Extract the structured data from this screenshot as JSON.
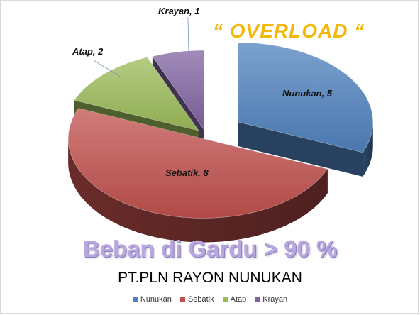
{
  "chart_data": {
    "type": "pie",
    "title": "“ OVERLOAD “",
    "subtitle": "Beban di Gardu > 90 %",
    "caption": "PT.PLN RAYON NUNUKAN",
    "categories": [
      "Nunukan",
      "Sebatik",
      "Atap",
      "Krayan"
    ],
    "values": [
      5,
      8,
      2,
      1
    ],
    "data_labels": [
      "Nunukan, 5",
      "Sebatik, 8",
      "Atap, 2",
      "Krayan, 1"
    ],
    "colors": [
      "#4f81bd",
      "#c0504d",
      "#9bbb59",
      "#8064a2"
    ],
    "legend_position": "bottom",
    "exploded": true,
    "three_d": true
  }
}
